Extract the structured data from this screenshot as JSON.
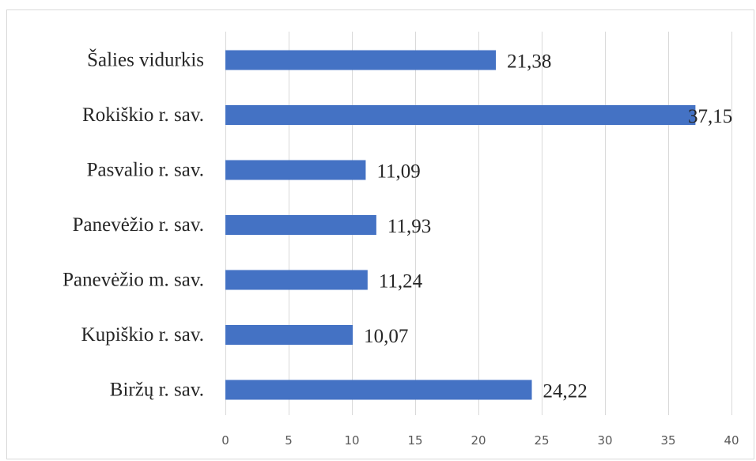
{
  "chart_data": {
    "type": "bar",
    "orientation": "horizontal",
    "categories": [
      "Šalies vidurkis",
      "Rokiškio r. sav.",
      "Pasvalio r. sav.",
      "Panevėžio r. sav.",
      "Panevėžio m. sav.",
      "Kupiškio r. sav.",
      "Biržų r. sav."
    ],
    "values": [
      21.38,
      37.15,
      11.09,
      11.93,
      11.24,
      10.07,
      24.22
    ],
    "value_labels": [
      "21,38",
      "37,15",
      "11,09",
      "11,93",
      "11,24",
      "10,07",
      "24,22"
    ],
    "xlim": [
      0,
      40
    ],
    "xticks": [
      0,
      5,
      10,
      15,
      20,
      25,
      30,
      35,
      40
    ],
    "xtick_labels": [
      "0",
      "5",
      "10",
      "15",
      "20",
      "25",
      "30",
      "35",
      "40"
    ],
    "grid": "vertical",
    "legend": "none",
    "bar_color": "#4472c4",
    "gridline_color": "#d9d9d9",
    "text_color": "#262626"
  }
}
